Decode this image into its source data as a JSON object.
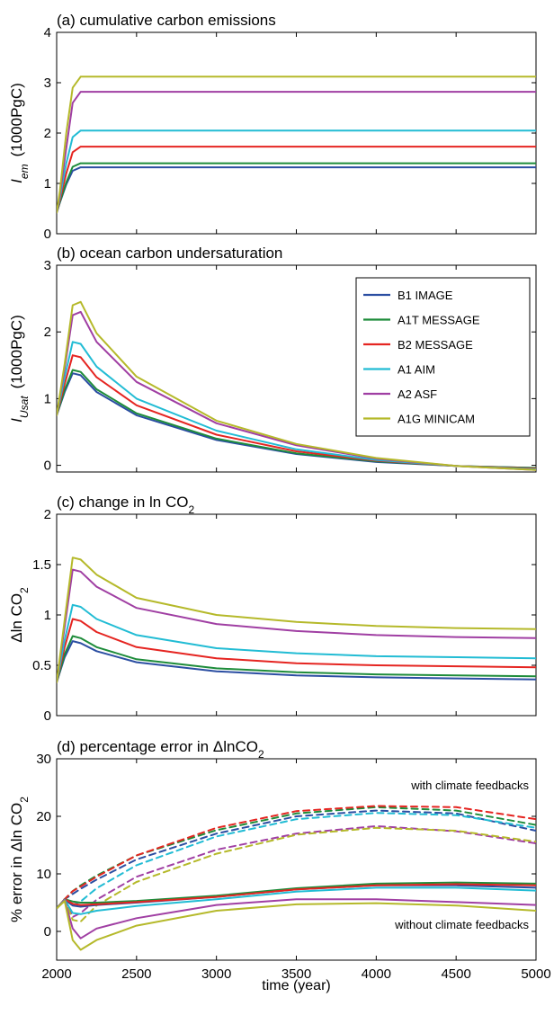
{
  "x_axis": {
    "label": "time (year)",
    "range": [
      2000,
      5000
    ],
    "ticks": [
      2000,
      2500,
      3000,
      3500,
      4000,
      4500,
      5000
    ]
  },
  "legend": [
    {
      "name": "B1 IMAGE",
      "color": "#2b4ea2"
    },
    {
      "name": "A1T MESSAGE",
      "color": "#1e8c3a"
    },
    {
      "name": "B2 MESSAGE",
      "color": "#e52521"
    },
    {
      "name": "A1 AIM",
      "color": "#22bcd4"
    },
    {
      "name": "A2 ASF",
      "color": "#a03fa3"
    },
    {
      "name": "A1G MINICAM",
      "color": "#b5b92a"
    }
  ],
  "chart_data": [
    {
      "panel": "a",
      "type": "line",
      "title": "(a) cumulative carbon emissions",
      "ylabel": {
        "main": "I",
        "sub": "em",
        "unit": "(1000PgC)"
      },
      "ylim": [
        0,
        4
      ],
      "yticks": [
        "0",
        "1",
        "2",
        "3",
        "4"
      ],
      "x": [
        2000,
        2020,
        2060,
        2100,
        2150,
        2500,
        5000
      ],
      "series": [
        {
          "name": "B1 IMAGE",
          "values": [
            0.42,
            0.62,
            0.98,
            1.25,
            1.32,
            1.32,
            1.32
          ]
        },
        {
          "name": "A1T MESSAGE",
          "values": [
            0.42,
            0.63,
            1.02,
            1.33,
            1.4,
            1.4,
            1.4
          ]
        },
        {
          "name": "B2 MESSAGE",
          "values": [
            0.42,
            0.67,
            1.2,
            1.62,
            1.73,
            1.73,
            1.73
          ]
        },
        {
          "name": "A1 AIM",
          "values": [
            0.42,
            0.72,
            1.4,
            1.92,
            2.05,
            2.05,
            2.05
          ]
        },
        {
          "name": "A2 ASF",
          "values": [
            0.42,
            0.78,
            1.7,
            2.6,
            2.82,
            2.82,
            2.82
          ]
        },
        {
          "name": "A1G MINICAM",
          "values": [
            0.42,
            0.85,
            2.0,
            2.9,
            3.12,
            3.12,
            3.12
          ]
        }
      ]
    },
    {
      "panel": "b",
      "type": "line",
      "title": "(b) ocean carbon undersaturation",
      "ylabel": {
        "main": "I",
        "sub": "Usat",
        "unit": "(1000PgC)"
      },
      "ylim": [
        -0.1,
        3
      ],
      "yticks": [
        "0",
        "1",
        "2",
        "3"
      ],
      "legend_position": "top-right",
      "x": [
        2000,
        2050,
        2100,
        2150,
        2250,
        2500,
        3000,
        3500,
        4000,
        4500,
        5000
      ],
      "series": [
        {
          "name": "B1 IMAGE",
          "values": [
            0.75,
            1.1,
            1.38,
            1.35,
            1.1,
            0.75,
            0.38,
            0.17,
            0.05,
            -0.01,
            -0.04
          ]
        },
        {
          "name": "A1T MESSAGE",
          "values": [
            0.75,
            1.13,
            1.43,
            1.4,
            1.14,
            0.78,
            0.4,
            0.18,
            0.06,
            -0.01,
            -0.04
          ]
        },
        {
          "name": "B2 MESSAGE",
          "values": [
            0.75,
            1.22,
            1.65,
            1.62,
            1.32,
            0.9,
            0.46,
            0.21,
            0.07,
            -0.01,
            -0.05
          ]
        },
        {
          "name": "A1 AIM",
          "values": [
            0.75,
            1.32,
            1.85,
            1.82,
            1.48,
            1.0,
            0.52,
            0.24,
            0.08,
            -0.01,
            -0.06
          ]
        },
        {
          "name": "A2 ASF",
          "values": [
            0.75,
            1.45,
            2.25,
            2.3,
            1.85,
            1.25,
            0.63,
            0.3,
            0.1,
            -0.01,
            -0.07
          ]
        },
        {
          "name": "A1G MINICAM",
          "values": [
            0.75,
            1.52,
            2.4,
            2.45,
            1.98,
            1.33,
            0.67,
            0.32,
            0.11,
            -0.01,
            -0.07
          ]
        }
      ]
    },
    {
      "panel": "c",
      "type": "line",
      "title": "(c) change in ln CO",
      "title_sub": "2",
      "ylabel": {
        "main": "Δln CO",
        "sub": "2",
        "unit": ""
      },
      "ylim": [
        0,
        2
      ],
      "yticks": [
        "0",
        "0.5",
        "1",
        "1.5",
        "2"
      ],
      "x": [
        2000,
        2050,
        2100,
        2150,
        2250,
        2500,
        3000,
        3500,
        4000,
        4500,
        5000
      ],
      "series": [
        {
          "name": "B1 IMAGE",
          "values": [
            0.33,
            0.58,
            0.74,
            0.72,
            0.64,
            0.53,
            0.44,
            0.4,
            0.38,
            0.37,
            0.36
          ]
        },
        {
          "name": "A1T MESSAGE",
          "values": [
            0.33,
            0.61,
            0.79,
            0.77,
            0.68,
            0.56,
            0.47,
            0.43,
            0.41,
            0.4,
            0.39
          ]
        },
        {
          "name": "B2 MESSAGE",
          "values": [
            0.33,
            0.68,
            0.96,
            0.94,
            0.83,
            0.68,
            0.57,
            0.52,
            0.5,
            0.49,
            0.48
          ]
        },
        {
          "name": "A1 AIM",
          "values": [
            0.33,
            0.75,
            1.1,
            1.08,
            0.96,
            0.8,
            0.67,
            0.62,
            0.59,
            0.58,
            0.57
          ]
        },
        {
          "name": "A2 ASF",
          "values": [
            0.33,
            0.88,
            1.45,
            1.43,
            1.28,
            1.07,
            0.91,
            0.84,
            0.8,
            0.78,
            0.77
          ]
        },
        {
          "name": "A1G MINICAM",
          "values": [
            0.33,
            0.95,
            1.57,
            1.55,
            1.4,
            1.17,
            1.0,
            0.93,
            0.89,
            0.87,
            0.86
          ]
        }
      ]
    },
    {
      "panel": "d",
      "type": "line",
      "title": "(d) percentage error in ΔlnCO",
      "title_sub": "2",
      "ylabel": {
        "main": "% error in Δln CO",
        "sub": "2",
        "unit": ""
      },
      "ylim": [
        -5,
        30
      ],
      "yticks": [
        "0",
        "10",
        "20",
        "30"
      ],
      "annotations": [
        "with climate feedbacks",
        "without climate feedbacks"
      ],
      "x": [
        2000,
        2050,
        2100,
        2150,
        2250,
        2500,
        3000,
        3500,
        4000,
        4500,
        5000
      ],
      "series_with_feedbacks": [
        {
          "name": "B1 IMAGE",
          "values": [
            4,
            5.6,
            6.5,
            7.4,
            9.0,
            12.5,
            17.0,
            20.0,
            21.0,
            20.5,
            17.5
          ]
        },
        {
          "name": "A1T MESSAGE",
          "values": [
            4,
            5.6,
            7.0,
            8.0,
            9.7,
            13.2,
            17.6,
            20.5,
            21.6,
            21.0,
            18.5
          ]
        },
        {
          "name": "B2 MESSAGE",
          "values": [
            4,
            5.6,
            7.0,
            7.8,
            9.5,
            13.2,
            18.0,
            20.9,
            21.8,
            21.6,
            19.5
          ]
        },
        {
          "name": "A1 AIM",
          "values": [
            4,
            5.6,
            4.6,
            5.2,
            7.5,
            11.5,
            16.5,
            19.5,
            20.6,
            20.2,
            18.0
          ]
        },
        {
          "name": "A2 ASF",
          "values": [
            4,
            5.6,
            2.5,
            3.2,
            5.5,
            9.5,
            14.2,
            17.0,
            18.3,
            17.4,
            15.3
          ]
        },
        {
          "name": "A1G MINICAM",
          "values": [
            4,
            5.6,
            2.0,
            1.7,
            4.5,
            8.6,
            13.5,
            16.8,
            18.0,
            17.5,
            15.6
          ]
        }
      ],
      "series_without_feedbacks": [
        {
          "name": "B1 IMAGE",
          "values": [
            4,
            5.5,
            4.5,
            4.3,
            4.6,
            5.0,
            6.0,
            7.3,
            8.0,
            8.0,
            7.6
          ]
        },
        {
          "name": "A1T MESSAGE",
          "values": [
            4,
            5.6,
            5.2,
            5.0,
            5.0,
            5.3,
            6.2,
            7.5,
            8.3,
            8.5,
            8.3
          ]
        },
        {
          "name": "B2 MESSAGE",
          "values": [
            4,
            5.6,
            4.8,
            4.6,
            4.7,
            5.1,
            6.0,
            7.3,
            8.0,
            8.2,
            8.0
          ]
        },
        {
          "name": "A1 AIM",
          "values": [
            4,
            5.5,
            3.2,
            3.0,
            3.6,
            4.4,
            5.6,
            6.9,
            7.6,
            7.6,
            7.1
          ]
        },
        {
          "name": "A2 ASF",
          "values": [
            4,
            5.4,
            0.5,
            -1.2,
            0.5,
            2.3,
            4.6,
            5.6,
            5.6,
            5.1,
            4.6
          ]
        },
        {
          "name": "A1G MINICAM",
          "values": [
            4,
            5.3,
            -1.5,
            -3.2,
            -1.5,
            1.0,
            3.6,
            4.7,
            4.9,
            4.5,
            3.6
          ]
        }
      ]
    }
  ]
}
